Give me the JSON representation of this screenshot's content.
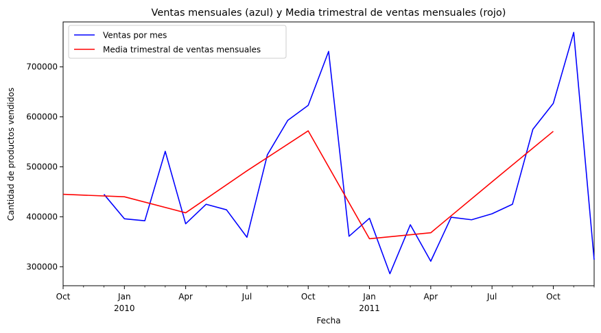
{
  "chart_data": {
    "type": "line",
    "title": "Ventas mensuales (azul) y Media trimestral de ventas mensuales (rojo)",
    "xlabel": "Fecha",
    "ylabel": "Cantidad de productos vendidos",
    "xlim": [
      "2009-10",
      "2011-12"
    ],
    "ylim": [
      262000,
      790000
    ],
    "x_ticks": [
      {
        "date": "2009-10",
        "label": "Oct",
        "sub": ""
      },
      {
        "date": "2010-01",
        "label": "Jan",
        "sub": "2010"
      },
      {
        "date": "2010-04",
        "label": "Apr",
        "sub": ""
      },
      {
        "date": "2010-07",
        "label": "Jul",
        "sub": ""
      },
      {
        "date": "2010-10",
        "label": "Oct",
        "sub": ""
      },
      {
        "date": "2011-01",
        "label": "Jan",
        "sub": "2011"
      },
      {
        "date": "2011-04",
        "label": "Apr",
        "sub": ""
      },
      {
        "date": "2011-07",
        "label": "Jul",
        "sub": ""
      },
      {
        "date": "2011-10",
        "label": "Oct",
        "sub": ""
      }
    ],
    "y_ticks": [
      300000,
      400000,
      500000,
      600000,
      700000
    ],
    "grid": false,
    "legend": "upper left",
    "series": [
      {
        "name": "Ventas por mes",
        "color": "#0000ff",
        "points": [
          [
            "2009-12",
            445000
          ],
          [
            "2010-01",
            396000
          ],
          [
            "2010-02",
            392000
          ],
          [
            "2010-03",
            531000
          ],
          [
            "2010-04",
            386000
          ],
          [
            "2010-05",
            425000
          ],
          [
            "2010-06",
            414000
          ],
          [
            "2010-07",
            359000
          ],
          [
            "2010-08",
            524000
          ],
          [
            "2010-09",
            593000
          ],
          [
            "2010-10",
            623000
          ],
          [
            "2010-11",
            731000
          ],
          [
            "2010-12",
            361000
          ],
          [
            "2011-01",
            397000
          ],
          [
            "2011-02",
            286000
          ],
          [
            "2011-03",
            384000
          ],
          [
            "2011-04",
            311000
          ],
          [
            "2011-05",
            399000
          ],
          [
            "2011-06",
            394000
          ],
          [
            "2011-07",
            406000
          ],
          [
            "2011-08",
            425000
          ],
          [
            "2011-09",
            575000
          ],
          [
            "2011-10",
            627000
          ],
          [
            "2011-11",
            769000
          ],
          [
            "2011-12",
            314000
          ]
        ]
      },
      {
        "name": "Media trimestral de ventas mensuales",
        "color": "#ff0000",
        "points": [
          [
            "2009-10",
            445000
          ],
          [
            "2010-01",
            440000
          ],
          [
            "2010-04",
            408000
          ],
          [
            "2010-07",
            492000
          ],
          [
            "2010-10",
            572000
          ],
          [
            "2011-01",
            356000
          ],
          [
            "2011-04",
            368000
          ],
          [
            "2011-07",
            470000
          ],
          [
            "2011-10",
            571000
          ]
        ]
      }
    ]
  }
}
